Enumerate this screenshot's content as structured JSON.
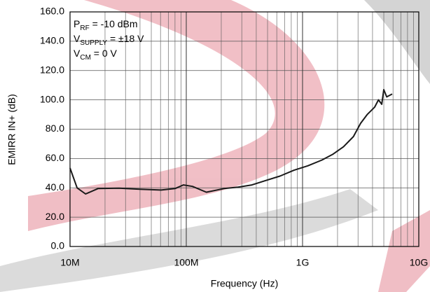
{
  "chart_data": {
    "type": "line",
    "x_label": "Frequency (Hz)",
    "y_label": "EMIRR IN+ (dB)",
    "annotations": [
      {
        "main": "P",
        "sub": "RF",
        "rest": " = -10 dBm"
      },
      {
        "main": "V",
        "sub": "SUPPLY",
        "rest": " = ±18 V"
      },
      {
        "main": "V",
        "sub": "CM",
        "rest": " = 0 V"
      }
    ],
    "x": [
      10000000,
      11500000,
      13600000,
      17400000,
      26400000,
      40000000,
      60700000,
      80000000,
      94600000,
      113000000,
      149000000,
      211000000,
      279000000,
      367000000,
      482000000,
      639000000,
      844000000,
      1110000000,
      1470000000,
      1830000000,
      2250000000,
      2740000000,
      3160000000,
      3600000000,
      4170000000,
      4500000000,
      4800000000,
      5000000000,
      5300000000,
      5900000000
    ],
    "series": [
      {
        "color": "#1a1a1a",
        "values": [
          53.5,
          40,
          35.8,
          39.5,
          39.8,
          39,
          38.5,
          39.5,
          42,
          41,
          37,
          39.5,
          40.5,
          42,
          45,
          48,
          52,
          55,
          59,
          63,
          68,
          75,
          84,
          90,
          95,
          100,
          97,
          107,
          102,
          104
        ]
      }
    ],
    "xlog": true,
    "xlim": [
      10000000,
      10000000000
    ],
    "xticks": [
      {
        "value": 10000000,
        "label": "10M"
      },
      {
        "value": 100000000,
        "label": "100M"
      },
      {
        "value": 1000000000,
        "label": "1G"
      },
      {
        "value": 10000000000,
        "label": "10G"
      }
    ],
    "ylim": [
      0,
      160
    ],
    "yticks": [
      {
        "value": 0,
        "label": "0.0"
      },
      {
        "value": 20,
        "label": "20.0"
      },
      {
        "value": 40,
        "label": "40.0"
      },
      {
        "value": 60,
        "label": "60.0"
      },
      {
        "value": 80,
        "label": "80.0"
      },
      {
        "value": 100,
        "label": "100.0"
      },
      {
        "value": 120,
        "label": "120.0"
      },
      {
        "value": 140,
        "label": "140.0"
      },
      {
        "value": 160,
        "label": "160.0"
      }
    ],
    "grid": true,
    "minor_grid": true
  }
}
